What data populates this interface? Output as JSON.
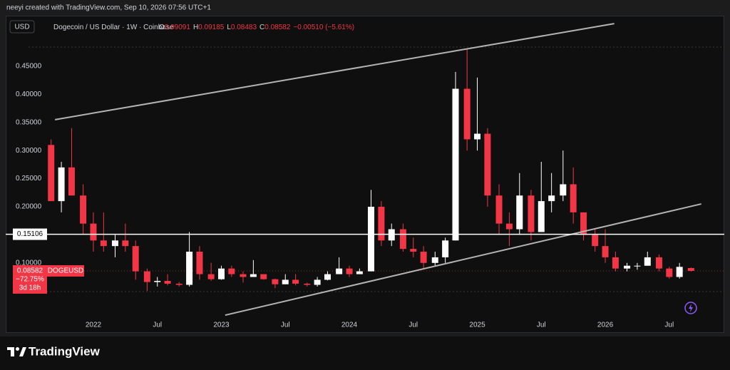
{
  "header": {
    "credit": "neeyi created with TradingView.com, Sep 10, 2026 07:56 UTC+1"
  },
  "chart_data": {
    "type": "candlestick",
    "currency": "USD",
    "title": "Dogecoin / US Dollar · 1W · Coinbase",
    "legend": [
      {
        "label": "O",
        "value": "0.09091"
      },
      {
        "label": "H",
        "value": "0.09185"
      },
      {
        "label": "L",
        "value": "0.08483"
      },
      {
        "label": "C",
        "value": "0.08582"
      }
    ],
    "change": "−0.00510 (−5.61%)",
    "x": [
      2021.67,
      2021.75,
      2021.83,
      2021.92,
      2022.0,
      2022.08,
      2022.17,
      2022.25,
      2022.33,
      2022.42,
      2022.5,
      2022.58,
      2022.67,
      2022.75,
      2022.83,
      2022.92,
      2023.0,
      2023.08,
      2023.17,
      2023.25,
      2023.33,
      2023.42,
      2023.5,
      2023.58,
      2023.67,
      2023.75,
      2023.83,
      2023.92,
      2024.0,
      2024.08,
      2024.17,
      2024.25,
      2024.33,
      2024.42,
      2024.5,
      2024.58,
      2024.67,
      2024.75,
      2024.83,
      2024.92,
      2025.0,
      2025.08,
      2025.17,
      2025.25,
      2025.33,
      2025.42,
      2025.5,
      2025.58,
      2025.67,
      2025.75,
      2025.83,
      2025.92,
      2026.0,
      2026.08,
      2026.17,
      2026.25,
      2026.33,
      2026.42,
      2026.5,
      2026.58,
      2026.67
    ],
    "open": [
      0.31,
      0.21,
      0.27,
      0.22,
      0.17,
      0.14,
      0.13,
      0.14,
      0.13,
      0.085,
      0.066,
      0.068,
      0.063,
      0.061,
      0.12,
      0.08,
      0.071,
      0.09,
      0.08,
      0.075,
      0.08,
      0.071,
      0.062,
      0.07,
      0.063,
      0.061,
      0.07,
      0.08,
      0.09,
      0.08,
      0.085,
      0.2,
      0.14,
      0.16,
      0.125,
      0.12,
      0.1,
      0.11,
      0.14,
      0.41,
      0.32,
      0.33,
      0.22,
      0.17,
      0.16,
      0.22,
      0.155,
      0.21,
      0.22,
      0.24,
      0.19,
      0.15,
      0.13,
      0.11,
      0.09,
      0.095,
      0.095,
      0.11,
      0.09,
      0.075,
      0.09091
    ],
    "high": [
      0.32,
      0.28,
      0.34,
      0.24,
      0.19,
      0.19,
      0.15,
      0.17,
      0.14,
      0.09,
      0.075,
      0.08,
      0.066,
      0.155,
      0.13,
      0.1,
      0.095,
      0.095,
      0.085,
      0.105,
      0.08,
      0.072,
      0.08,
      0.08,
      0.065,
      0.075,
      0.085,
      0.11,
      0.095,
      0.09,
      0.23,
      0.21,
      0.17,
      0.17,
      0.145,
      0.13,
      0.12,
      0.145,
      0.44,
      0.48,
      0.43,
      0.34,
      0.24,
      0.19,
      0.26,
      0.23,
      0.28,
      0.26,
      0.3,
      0.27,
      0.19,
      0.16,
      0.16,
      0.12,
      0.1,
      0.1,
      0.12,
      0.115,
      0.093,
      0.1,
      0.09185
    ],
    "low": [
      0.21,
      0.19,
      0.22,
      0.15,
      0.12,
      0.12,
      0.11,
      0.12,
      0.07,
      0.05,
      0.058,
      0.06,
      0.058,
      0.058,
      0.07,
      0.068,
      0.07,
      0.075,
      0.065,
      0.075,
      0.07,
      0.055,
      0.062,
      0.06,
      0.058,
      0.058,
      0.069,
      0.08,
      0.075,
      0.08,
      0.085,
      0.13,
      0.13,
      0.12,
      0.11,
      0.09,
      0.095,
      0.1,
      0.14,
      0.3,
      0.3,
      0.2,
      0.15,
      0.13,
      0.15,
      0.14,
      0.155,
      0.19,
      0.21,
      0.17,
      0.14,
      0.12,
      0.1,
      0.085,
      0.085,
      0.088,
      0.095,
      0.085,
      0.072,
      0.072,
      0.08483
    ],
    "close": [
      0.21,
      0.27,
      0.22,
      0.17,
      0.14,
      0.13,
      0.14,
      0.13,
      0.085,
      0.066,
      0.068,
      0.063,
      0.061,
      0.12,
      0.08,
      0.071,
      0.09,
      0.08,
      0.075,
      0.08,
      0.071,
      0.062,
      0.07,
      0.063,
      0.061,
      0.07,
      0.08,
      0.09,
      0.08,
      0.085,
      0.2,
      0.14,
      0.16,
      0.125,
      0.12,
      0.1,
      0.11,
      0.14,
      0.41,
      0.32,
      0.33,
      0.22,
      0.17,
      0.16,
      0.22,
      0.155,
      0.21,
      0.22,
      0.24,
      0.19,
      0.15,
      0.13,
      0.11,
      0.09,
      0.095,
      0.095,
      0.11,
      0.09,
      0.075,
      0.093,
      0.08582
    ],
    "up_color": "#ffffff",
    "down_color": "#f23645",
    "xlim": [
      2021.315,
      2026.93
    ],
    "xticks": [
      {
        "value": 2022,
        "label": "2022"
      },
      {
        "value": 2022.5,
        "label": "Jul"
      },
      {
        "value": 2023,
        "label": "2023"
      },
      {
        "value": 2023.5,
        "label": "Jul"
      },
      {
        "value": 2024,
        "label": "2024"
      },
      {
        "value": 2024.5,
        "label": "Jul"
      },
      {
        "value": 2025,
        "label": "2025"
      },
      {
        "value": 2025.5,
        "label": "Jul"
      },
      {
        "value": 2026,
        "label": "2026"
      },
      {
        "value": 2026.5,
        "label": "Jul"
      }
    ],
    "ylim": [
      0.0033,
      0.5401
    ],
    "yticks": [
      {
        "value": 0.1,
        "label": "0.10000"
      },
      {
        "value": 0.2,
        "label": "0.20000"
      },
      {
        "value": 0.25,
        "label": "0.25000"
      },
      {
        "value": 0.3,
        "label": "0.30000"
      },
      {
        "value": 0.35,
        "label": "0.35000"
      },
      {
        "value": 0.4,
        "label": "0.40000"
      },
      {
        "value": 0.45,
        "label": "0.45000"
      }
    ],
    "horizontal_line": {
      "value": 0.15106,
      "color": "#ffffff"
    },
    "price_label": {
      "value": 0.08582,
      "symbol": "DOGEUSD",
      "change": "−72.75%",
      "countdown": "3d 18h"
    },
    "trendlines": [
      {
        "x": [
          2021.7,
          2026.07
        ],
        "values": [
          0.355,
          0.526
        ]
      },
      {
        "x": [
          2023.03,
          2026.75
        ],
        "values": [
          0.007,
          0.205
        ]
      }
    ],
    "trendline_color": "#b4b4b4"
  },
  "footer": {
    "brand": "TradingView"
  }
}
